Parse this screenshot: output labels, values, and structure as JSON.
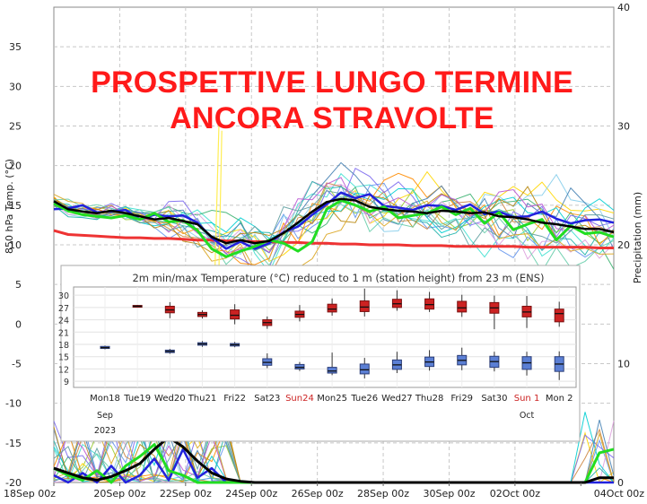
{
  "headline": {
    "line1": "PROSPETTIVE LUNGO TERMINE",
    "line2": "ANCORA STRAVOLTE",
    "color": "#ff1a1a"
  },
  "chart_data": [
    {
      "type": "line",
      "title": "",
      "ylabel": "850 hPa Temp. (°C)",
      "y2label": "Precipitation (mm)",
      "ylim": [
        -20,
        40
      ],
      "y2lim": [
        0,
        40
      ],
      "yticks": [
        -20,
        -15,
        -10,
        -5,
        0,
        5,
        10,
        15,
        20,
        25,
        30,
        35
      ],
      "y2ticks": [
        0,
        10,
        20,
        30,
        40
      ],
      "xtick_labels": [
        "18Sep 00z",
        "20Sep 00z",
        "22Sep 00z",
        "24Sep 00z",
        "26Sep 00z",
        "28Sep 00z",
        "30Sep 00z",
        "02Oct 00z",
        "04Oct 00z"
      ],
      "grid": true,
      "series": [
        {
          "role": "mean",
          "color": "#000000",
          "values": [
            15.5,
            14.5,
            14.2,
            14.0,
            14.3,
            14.0,
            13.6,
            13.2,
            13.4,
            13.0,
            12.6,
            11.0,
            10.2,
            10.6,
            10.2,
            10.5,
            11.5,
            12.8,
            14.2,
            15.4,
            15.8,
            15.6,
            14.8,
            14.5,
            14.3,
            14.2,
            14.0,
            14.3,
            14.2,
            14.0,
            14.1,
            13.6,
            13.5,
            13.2,
            12.8,
            12.6,
            12.3,
            12.0,
            12.0,
            11.6
          ]
        },
        {
          "role": "control",
          "color": "#22dd22",
          "values": [
            15.2,
            14.3,
            13.8,
            13.6,
            13.4,
            13.7,
            13.2,
            14.0,
            12.9,
            13.1,
            11.8,
            9.5,
            8.5,
            9.2,
            9.8,
            10.6,
            10.2,
            9.2,
            10.4,
            14.5,
            15.6,
            15.0,
            14.2,
            14.8,
            13.4,
            13.7,
            14.0,
            14.8,
            13.8,
            14.6,
            12.7,
            14.1,
            11.9,
            12.6,
            13.2,
            10.6,
            12.4,
            11.4,
            11.6,
            11.0
          ]
        },
        {
          "role": "operational",
          "color": "#2222dd",
          "values": [
            14.5,
            14.6,
            15.0,
            14.1,
            14.2,
            14.4,
            13.2,
            13.8,
            13.6,
            13.7,
            12.8,
            10.9,
            9.5,
            10.4,
            9.5,
            10.2,
            11.6,
            12.3,
            13.8,
            15.1,
            16.6,
            15.9,
            16.4,
            14.9,
            14.7,
            14.4,
            15.0,
            14.9,
            14.4,
            15.1,
            13.9,
            14.2,
            13.5,
            13.6,
            14.2,
            13.3,
            12.7,
            13.1,
            13.2,
            12.8
          ]
        },
        {
          "role": "climate",
          "color": "#ee3333",
          "values": [
            11.8,
            11.3,
            11.2,
            11.1,
            11.0,
            10.9,
            10.9,
            10.8,
            10.8,
            10.7,
            10.6,
            10.6,
            10.5,
            10.5,
            10.4,
            10.4,
            10.3,
            10.3,
            10.2,
            10.2,
            10.1,
            10.1,
            10.0,
            10.0,
            10.0,
            9.9,
            9.9,
            9.9,
            9.8,
            9.8,
            9.8,
            9.8,
            9.8,
            9.7,
            9.7,
            9.7,
            9.7,
            9.7,
            9.6,
            9.6
          ]
        },
        {
          "role": "precip_mean",
          "color": "#000000",
          "values": [
            1.2,
            0.8,
            0.4,
            0.2,
            0.5,
            1.0,
            1.6,
            2.8,
            3.8,
            3.0,
            1.8,
            0.8,
            0.3,
            0.1,
            0.0,
            0.0,
            0.0,
            0.0,
            0.0,
            0.0,
            0.0,
            0.0,
            0.0,
            0.0,
            0.0,
            0.0,
            0.0,
            0.0,
            0.0,
            0.0,
            0.0,
            0.0,
            0.0,
            0.0,
            0.0,
            0.0,
            0.0,
            0.0,
            0.4,
            0.4
          ]
        },
        {
          "role": "precip_control",
          "color": "#22dd22",
          "values": [
            1.2,
            0.6,
            0.2,
            1.0,
            0.0,
            1.4,
            2.2,
            3.2,
            1.0,
            0.6,
            0.0,
            0.0,
            0.0,
            0.0,
            0.0,
            0.0,
            0.0,
            0.0,
            0.0,
            0.0,
            0.0,
            0.0,
            0.0,
            0.0,
            0.0,
            0.0,
            0.0,
            0.0,
            0.0,
            0.0,
            0.0,
            0.0,
            0.0,
            0.0,
            0.0,
            0.0,
            0.0,
            0.0,
            2.5,
            2.8
          ]
        },
        {
          "role": "precip_operational",
          "color": "#2222dd",
          "values": [
            0.6,
            0.0,
            0.8,
            0.0,
            1.4,
            0.0,
            0.6,
            2.0,
            0.2,
            2.8,
            0.4,
            1.2,
            0.0,
            0.0,
            0.0,
            0.0,
            0.0,
            0.0,
            0.0,
            0.0,
            0.0,
            0.0,
            0.0,
            0.0,
            0.0,
            0.0,
            0.0,
            0.0,
            0.0,
            0.0,
            0.0,
            0.0,
            0.0,
            0.0,
            0.0,
            0.0,
            0.0,
            0.0,
            0.0,
            0.0
          ]
        }
      ],
      "ensemble_colors": [
        "#9acd32",
        "#40e0d0",
        "#6495ed",
        "#ffd700",
        "#3cb371",
        "#87ceeb",
        "#dda0dd",
        "#cd853f",
        "#20b2aa",
        "#7b68ee",
        "#ff8c00",
        "#00ced1",
        "#b8860b",
        "#4682b4",
        "#66cdaa",
        "#ba55d3",
        "#daa520",
        "#5f9ea0"
      ]
    },
    {
      "type": "boxplot",
      "title": "2m min/max Temperature (°C) reduced to 1 m (station height) from 23 m (ENS)",
      "yticks": [
        9,
        12,
        15,
        18,
        21,
        24,
        27,
        30
      ],
      "ylim": [
        7.5,
        32
      ],
      "categories": [
        "Mon18",
        "Tue19",
        "Wed20",
        "Thu21",
        "Fri22",
        "Sat23",
        "Sun24",
        "Mon25",
        "Tue26",
        "Wed27",
        "Thu28",
        "Fri29",
        "Sat30",
        "Sun 1",
        "Mon 2"
      ],
      "weekend_color": "#cc2222",
      "date_labels": {
        "month_start": "Sep",
        "year": "2023",
        "month_change": "Oct"
      },
      "max_color": "#cc2222",
      "min_color": "#5b7fd4",
      "max": [
        null,
        {
          "min": 27.0,
          "q1": 27.1,
          "med": 27.3,
          "q3": 27.5,
          "max": 27.6
        },
        {
          "min": 24.4,
          "q1": 25.7,
          "med": 26.4,
          "q3": 27.3,
          "max": 28.3
        },
        {
          "min": 24.3,
          "q1": 24.8,
          "med": 25.3,
          "q3": 25.8,
          "max": 26.3
        },
        {
          "min": 22.9,
          "q1": 24.2,
          "med": 25.1,
          "q3": 26.4,
          "max": 27.8
        },
        {
          "min": 21.8,
          "q1": 22.6,
          "med": 23.3,
          "q3": 24.0,
          "max": 24.8
        },
        {
          "min": 23.6,
          "q1": 24.6,
          "med": 25.3,
          "q3": 26.1,
          "max": 27.6
        },
        {
          "min": 25.0,
          "q1": 25.9,
          "med": 26.6,
          "q3": 27.8,
          "max": 29.2
        },
        {
          "min": 24.8,
          "q1": 26.0,
          "med": 27.1,
          "q3": 28.6,
          "max": 31.6
        },
        {
          "min": 26.2,
          "q1": 27.0,
          "med": 27.9,
          "q3": 29.0,
          "max": 31.2
        },
        {
          "min": 25.9,
          "q1": 26.6,
          "med": 27.7,
          "q3": 29.1,
          "max": 30.8
        },
        {
          "min": 24.7,
          "q1": 25.9,
          "med": 26.9,
          "q3": 28.5,
          "max": 30.1
        },
        {
          "min": 21.7,
          "q1": 25.6,
          "med": 26.9,
          "q3": 28.2,
          "max": 29.9
        },
        {
          "min": 22.0,
          "q1": 24.7,
          "med": 25.9,
          "q3": 27.3,
          "max": 29.8
        },
        {
          "min": 22.3,
          "q1": 23.5,
          "med": 25.5,
          "q3": 26.6,
          "max": 28.4
        }
      ],
      "min": [
        {
          "min": 16.8,
          "q1": 17.0,
          "med": 17.2,
          "q3": 17.5,
          "max": 17.7
        },
        null,
        {
          "min": 15.7,
          "q1": 16.0,
          "med": 16.3,
          "q3": 16.6,
          "max": 16.9
        },
        {
          "min": 17.4,
          "q1": 17.8,
          "med": 18.1,
          "q3": 18.4,
          "max": 18.8
        },
        {
          "min": 17.3,
          "q1": 17.6,
          "med": 17.9,
          "q3": 18.2,
          "max": 18.6
        },
        {
          "min": 12.2,
          "q1": 12.9,
          "med": 13.6,
          "q3": 14.5,
          "max": 15.8
        },
        {
          "min": 11.5,
          "q1": 12.0,
          "med": 12.4,
          "q3": 13.1,
          "max": 13.7
        },
        {
          "min": 10.5,
          "q1": 11.0,
          "med": 11.5,
          "q3": 12.4,
          "max": 16.0
        },
        {
          "min": 9.7,
          "q1": 10.8,
          "med": 11.8,
          "q3": 13.2,
          "max": 14.7
        },
        {
          "min": 11.0,
          "q1": 11.9,
          "med": 13.0,
          "q3": 14.2,
          "max": 16.2
        },
        {
          "min": 11.6,
          "q1": 12.6,
          "med": 13.7,
          "q3": 14.9,
          "max": 16.6
        },
        {
          "min": 11.7,
          "q1": 13.0,
          "med": 14.1,
          "q3": 15.3,
          "max": 17.2
        },
        {
          "min": 11.4,
          "q1": 12.4,
          "med": 13.8,
          "q3": 15.1,
          "max": 16.2
        },
        {
          "min": 10.4,
          "q1": 11.9,
          "med": 13.5,
          "q3": 15.0,
          "max": 16.2
        },
        {
          "min": 9.3,
          "q1": 11.4,
          "med": 13.2,
          "q3": 15.0,
          "max": 16.3
        }
      ]
    }
  ]
}
